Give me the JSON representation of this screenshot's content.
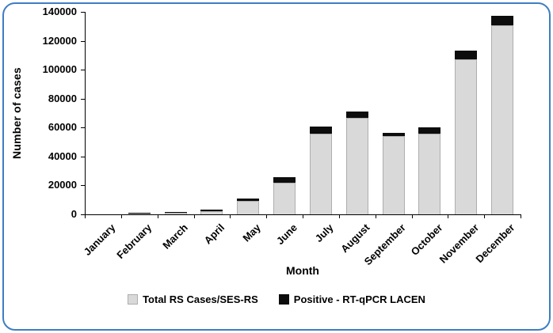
{
  "frame": {
    "border_color": "#3e7ec1"
  },
  "chart_data": {
    "type": "bar",
    "stacked": true,
    "xlabel": "Month",
    "ylabel": "Number of cases",
    "ylim": [
      0,
      140000
    ],
    "yticks": [
      "0",
      "20000",
      "40000",
      "60000",
      "80000",
      "100000",
      "120000",
      "140000"
    ],
    "categories": [
      "January",
      "February",
      "March",
      "April",
      "May",
      "June",
      "July",
      "August",
      "September",
      "October",
      "November",
      "December"
    ],
    "series": [
      {
        "name": "Total RS Cases/SES-RS",
        "color": "#d9d9d9",
        "border_color": "#aeaeae",
        "values": [
          0,
          700,
          900,
          2200,
          9200,
          22000,
          56000,
          66500,
          54000,
          56000,
          107000,
          130500
        ]
      },
      {
        "name": "Positive - RT-qPCR LACEN",
        "color": "#0d0d0d",
        "border_color": "#0d0d0d",
        "values": [
          0,
          500,
          600,
          1000,
          1800,
          3500,
          4500,
          4500,
          2500,
          4000,
          6000,
          7000
        ]
      }
    ],
    "legend_position": "bottom",
    "grid": false
  }
}
